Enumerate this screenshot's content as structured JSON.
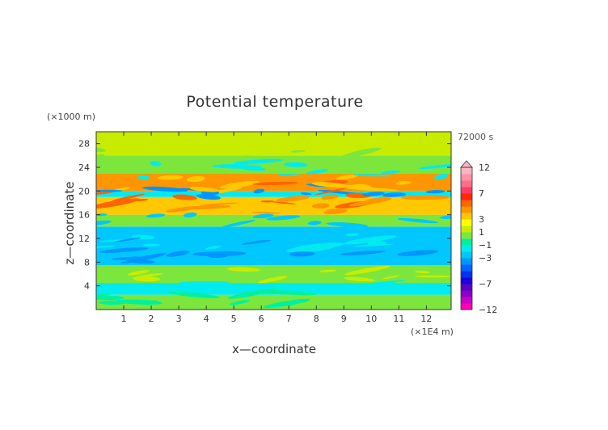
{
  "chart_data": {
    "type": "heatmap",
    "title": "Potential temperature",
    "xlabel": "x—coordinate",
    "ylabel": "z—coordinate",
    "x_unit": "(×1E4 m)",
    "y_unit": "(×1000 m)",
    "time_label": "72000 s",
    "xlim": [
      0,
      12.9
    ],
    "ylim": [
      0,
      30
    ],
    "x_ticks": [
      "1",
      "2",
      "3",
      "4",
      "5",
      "6",
      "7",
      "8",
      "9",
      "10",
      "11",
      "12"
    ],
    "y_ticks": [
      "4",
      "8",
      "12",
      "16",
      "20",
      "24",
      "28"
    ],
    "colorbar": {
      "levels": [
        -12,
        -10,
        -9,
        -8,
        -7,
        -6,
        -5,
        -4,
        -3,
        -2,
        -1,
        0,
        1,
        2,
        3,
        4,
        5,
        6,
        7,
        8,
        9,
        10,
        12
      ],
      "labels": [
        "12",
        "7",
        "3",
        "1",
        "−1",
        "−3",
        "−7",
        "−12"
      ],
      "colors": [
        "#ff00b4",
        "#c800c8",
        "#8c00c8",
        "#5a00c8",
        "#1e00dc",
        "#0032f0",
        "#0064ff",
        "#0096ff",
        "#00c8ff",
        "#00eaf0",
        "#00f0a0",
        "#7de63c",
        "#c8ec00",
        "#ffff00",
        "#ffc800",
        "#ff9600",
        "#ff6400",
        "#ff2800",
        "#ff3c64",
        "#ff6e8c",
        "#ff91a5",
        "#ffb4c3"
      ]
    },
    "bands": [
      {
        "z_from": 0,
        "z_to": 2.5,
        "value": 0
      },
      {
        "z_from": 2.5,
        "z_to": 4.5,
        "value": -1.5
      },
      {
        "z_from": 4.5,
        "z_to": 7.5,
        "value": 0.5
      },
      {
        "z_from": 7.5,
        "z_to": 14,
        "value": -2.5
      },
      {
        "z_from": 14,
        "z_to": 16,
        "value": 0
      },
      {
        "z_from": 16,
        "z_to": 19,
        "value": 3
      },
      {
        "z_from": 19,
        "z_to": 20,
        "value": -2
      },
      {
        "z_from": 20,
        "z_to": 23,
        "value": 4
      },
      {
        "z_from": 23,
        "z_to": 26,
        "value": 0
      },
      {
        "z_from": 26,
        "z_to": 30,
        "value": 1.5
      }
    ]
  }
}
